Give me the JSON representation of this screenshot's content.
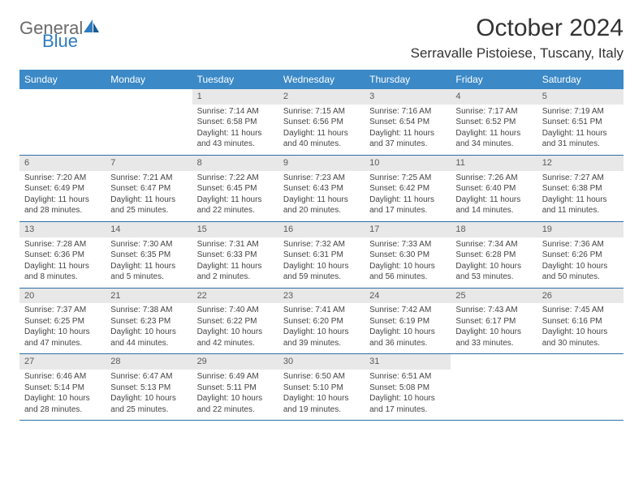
{
  "logo": {
    "text1": "General",
    "text2": "Blue"
  },
  "title": "October 2024",
  "location": "Serravalle Pistoiese, Tuscany, Italy",
  "header_bg": "#3b89c7",
  "header_fg": "#ffffff",
  "daynum_bg": "#e8e8e8",
  "row_border": "#2d6fa8",
  "text_color": "#444444",
  "font_size_title": 30,
  "font_size_location": 17,
  "font_size_dayheader": 12,
  "font_size_daynum": 11,
  "font_size_body": 10,
  "day_labels": [
    "Sunday",
    "Monday",
    "Tuesday",
    "Wednesday",
    "Thursday",
    "Friday",
    "Saturday"
  ],
  "weeks": [
    [
      null,
      null,
      {
        "n": "1",
        "sr": "Sunrise: 7:14 AM",
        "ss": "Sunset: 6:58 PM",
        "dl": "Daylight: 11 hours and 43 minutes."
      },
      {
        "n": "2",
        "sr": "Sunrise: 7:15 AM",
        "ss": "Sunset: 6:56 PM",
        "dl": "Daylight: 11 hours and 40 minutes."
      },
      {
        "n": "3",
        "sr": "Sunrise: 7:16 AM",
        "ss": "Sunset: 6:54 PM",
        "dl": "Daylight: 11 hours and 37 minutes."
      },
      {
        "n": "4",
        "sr": "Sunrise: 7:17 AM",
        "ss": "Sunset: 6:52 PM",
        "dl": "Daylight: 11 hours and 34 minutes."
      },
      {
        "n": "5",
        "sr": "Sunrise: 7:19 AM",
        "ss": "Sunset: 6:51 PM",
        "dl": "Daylight: 11 hours and 31 minutes."
      }
    ],
    [
      {
        "n": "6",
        "sr": "Sunrise: 7:20 AM",
        "ss": "Sunset: 6:49 PM",
        "dl": "Daylight: 11 hours and 28 minutes."
      },
      {
        "n": "7",
        "sr": "Sunrise: 7:21 AM",
        "ss": "Sunset: 6:47 PM",
        "dl": "Daylight: 11 hours and 25 minutes."
      },
      {
        "n": "8",
        "sr": "Sunrise: 7:22 AM",
        "ss": "Sunset: 6:45 PM",
        "dl": "Daylight: 11 hours and 22 minutes."
      },
      {
        "n": "9",
        "sr": "Sunrise: 7:23 AM",
        "ss": "Sunset: 6:43 PM",
        "dl": "Daylight: 11 hours and 20 minutes."
      },
      {
        "n": "10",
        "sr": "Sunrise: 7:25 AM",
        "ss": "Sunset: 6:42 PM",
        "dl": "Daylight: 11 hours and 17 minutes."
      },
      {
        "n": "11",
        "sr": "Sunrise: 7:26 AM",
        "ss": "Sunset: 6:40 PM",
        "dl": "Daylight: 11 hours and 14 minutes."
      },
      {
        "n": "12",
        "sr": "Sunrise: 7:27 AM",
        "ss": "Sunset: 6:38 PM",
        "dl": "Daylight: 11 hours and 11 minutes."
      }
    ],
    [
      {
        "n": "13",
        "sr": "Sunrise: 7:28 AM",
        "ss": "Sunset: 6:36 PM",
        "dl": "Daylight: 11 hours and 8 minutes."
      },
      {
        "n": "14",
        "sr": "Sunrise: 7:30 AM",
        "ss": "Sunset: 6:35 PM",
        "dl": "Daylight: 11 hours and 5 minutes."
      },
      {
        "n": "15",
        "sr": "Sunrise: 7:31 AM",
        "ss": "Sunset: 6:33 PM",
        "dl": "Daylight: 11 hours and 2 minutes."
      },
      {
        "n": "16",
        "sr": "Sunrise: 7:32 AM",
        "ss": "Sunset: 6:31 PM",
        "dl": "Daylight: 10 hours and 59 minutes."
      },
      {
        "n": "17",
        "sr": "Sunrise: 7:33 AM",
        "ss": "Sunset: 6:30 PM",
        "dl": "Daylight: 10 hours and 56 minutes."
      },
      {
        "n": "18",
        "sr": "Sunrise: 7:34 AM",
        "ss": "Sunset: 6:28 PM",
        "dl": "Daylight: 10 hours and 53 minutes."
      },
      {
        "n": "19",
        "sr": "Sunrise: 7:36 AM",
        "ss": "Sunset: 6:26 PM",
        "dl": "Daylight: 10 hours and 50 minutes."
      }
    ],
    [
      {
        "n": "20",
        "sr": "Sunrise: 7:37 AM",
        "ss": "Sunset: 6:25 PM",
        "dl": "Daylight: 10 hours and 47 minutes."
      },
      {
        "n": "21",
        "sr": "Sunrise: 7:38 AM",
        "ss": "Sunset: 6:23 PM",
        "dl": "Daylight: 10 hours and 44 minutes."
      },
      {
        "n": "22",
        "sr": "Sunrise: 7:40 AM",
        "ss": "Sunset: 6:22 PM",
        "dl": "Daylight: 10 hours and 42 minutes."
      },
      {
        "n": "23",
        "sr": "Sunrise: 7:41 AM",
        "ss": "Sunset: 6:20 PM",
        "dl": "Daylight: 10 hours and 39 minutes."
      },
      {
        "n": "24",
        "sr": "Sunrise: 7:42 AM",
        "ss": "Sunset: 6:19 PM",
        "dl": "Daylight: 10 hours and 36 minutes."
      },
      {
        "n": "25",
        "sr": "Sunrise: 7:43 AM",
        "ss": "Sunset: 6:17 PM",
        "dl": "Daylight: 10 hours and 33 minutes."
      },
      {
        "n": "26",
        "sr": "Sunrise: 7:45 AM",
        "ss": "Sunset: 6:16 PM",
        "dl": "Daylight: 10 hours and 30 minutes."
      }
    ],
    [
      {
        "n": "27",
        "sr": "Sunrise: 6:46 AM",
        "ss": "Sunset: 5:14 PM",
        "dl": "Daylight: 10 hours and 28 minutes."
      },
      {
        "n": "28",
        "sr": "Sunrise: 6:47 AM",
        "ss": "Sunset: 5:13 PM",
        "dl": "Daylight: 10 hours and 25 minutes."
      },
      {
        "n": "29",
        "sr": "Sunrise: 6:49 AM",
        "ss": "Sunset: 5:11 PM",
        "dl": "Daylight: 10 hours and 22 minutes."
      },
      {
        "n": "30",
        "sr": "Sunrise: 6:50 AM",
        "ss": "Sunset: 5:10 PM",
        "dl": "Daylight: 10 hours and 19 minutes."
      },
      {
        "n": "31",
        "sr": "Sunrise: 6:51 AM",
        "ss": "Sunset: 5:08 PM",
        "dl": "Daylight: 10 hours and 17 minutes."
      },
      null,
      null
    ]
  ]
}
